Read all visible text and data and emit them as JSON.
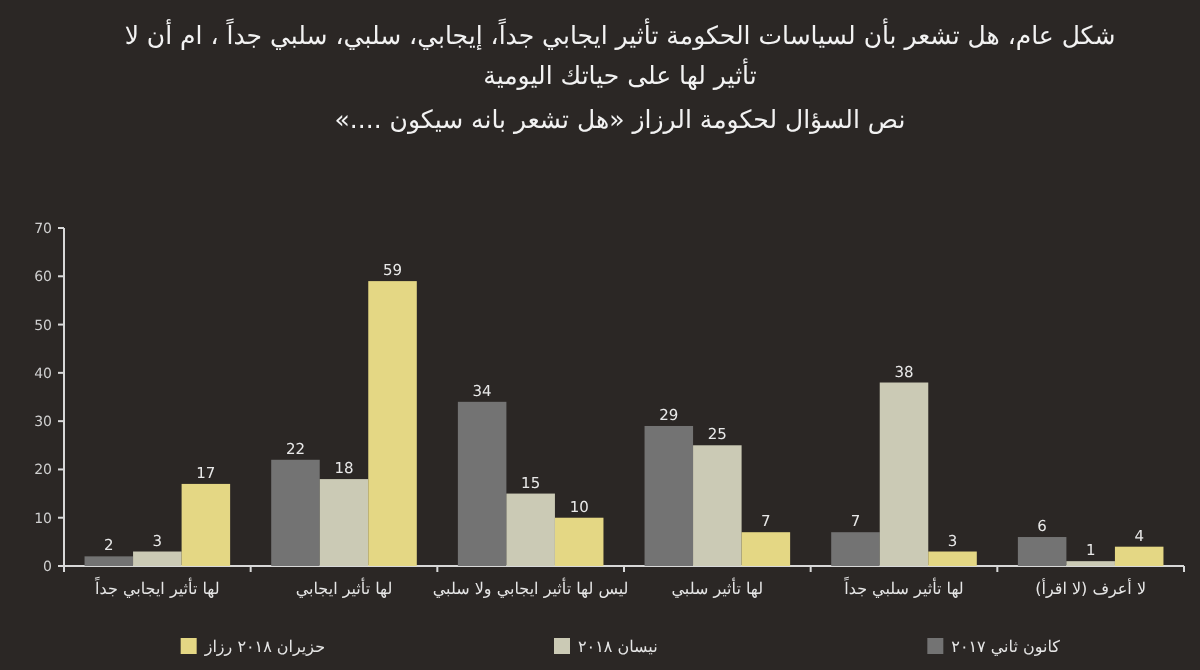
{
  "chart_data": {
    "type": "bar",
    "title": "شكل عام، هل تشعر بأن لسياسات الحكومة تأثير ايجابي جداً، إيجابي، سلبي، سلبي جداً ، ام أن لا تأثير لها على حياتك اليومية",
    "subtitle": "نص السؤال لحكومة الرزاز «هل تشعر بانه سيكون ....»",
    "categories": [
      "لها تأثير ايجابي جداً",
      "لها تأثير ايجابي",
      "ليس لها تأثير ايجابي ولا سلبي",
      "لها تأثير سلبي",
      "لها تأثير سلبي جداً",
      "لا أعرف (لا اقرأ)"
    ],
    "series": [
      {
        "name": "كانون ثاني ٢٠١٧",
        "color": "#737373",
        "values": [
          2,
          22,
          34,
          29,
          7,
          6
        ]
      },
      {
        "name": "نيسان ٢٠١٨",
        "color": "#cbcab5",
        "values": [
          3,
          18,
          15,
          25,
          38,
          1
        ]
      },
      {
        "name": "حزيران ٢٠١٨ رزاز",
        "color": "#e4d784",
        "values": [
          17,
          59,
          10,
          7,
          3,
          4
        ]
      }
    ],
    "ylim": [
      0,
      70
    ],
    "yticks": [
      0,
      10,
      20,
      30,
      40,
      50,
      60,
      70
    ],
    "data_labels": true,
    "legend": "bottom",
    "grid": false
  }
}
